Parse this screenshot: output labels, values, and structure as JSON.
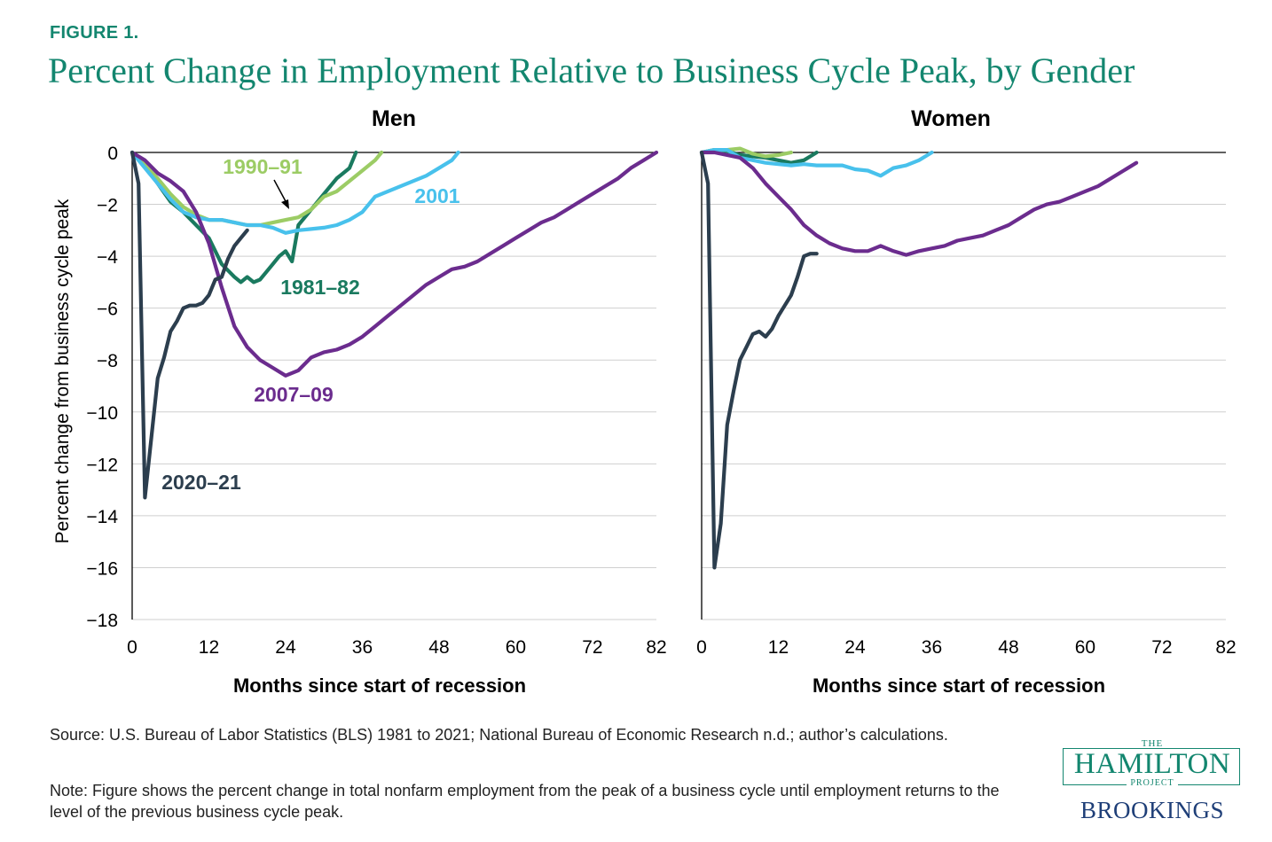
{
  "figure_label": "FIGURE 1.",
  "title": "Percent Change in Employment Relative to Business Cycle Peak, by Gender",
  "source_note": "Source: U.S. Bureau of Labor Statistics (BLS) 1981 to 2021; National Bureau of Economic Research n.d.; author’s calculations.",
  "note": "Note: Figure shows the percent change in total nonfarm employment from the peak of a business cycle until employment returns to the level of the previous business cycle peak.",
  "logo": {
    "the": "THE",
    "name": "HAMILTON",
    "project": "PROJECT",
    "brookings": "BROOKINGS"
  },
  "colors": {
    "title": "#13866f",
    "grid": "#cfcfcf",
    "axis": "#000000",
    "brookings": "#1f3f78"
  },
  "chart_data": [
    {
      "type": "line",
      "title": "Men",
      "xlabel": "Months since start of recession",
      "ylabel": "Percent change from business cycle peak",
      "xlim": [
        0,
        82
      ],
      "ylim": [
        -18,
        0
      ],
      "xticks": [
        "0",
        "12",
        "24",
        "36",
        "48",
        "60",
        "72",
        "82"
      ],
      "yticks": [
        "0",
        "−2",
        "−4",
        "−6",
        "−8",
        "−10",
        "−12",
        "−14",
        "−16",
        "−18"
      ],
      "grid": true,
      "series": [
        {
          "name": "1981–82",
          "color": "#1a7a5f",
          "x": [
            0,
            2,
            4,
            6,
            8,
            10,
            12,
            14,
            16,
            17,
            18,
            19,
            20,
            21,
            22,
            23,
            24,
            25,
            26,
            28,
            30,
            32,
            34,
            35
          ],
          "y": [
            0,
            -0.5,
            -1.2,
            -1.9,
            -2.3,
            -2.8,
            -3.3,
            -4.3,
            -4.8,
            -5.0,
            -4.8,
            -5.0,
            -4.9,
            -4.6,
            -4.3,
            -4.0,
            -3.8,
            -4.2,
            -2.8,
            -2.2,
            -1.6,
            -1.0,
            -0.6,
            0
          ]
        },
        {
          "name": "1990–91",
          "color": "#9ccc65",
          "x": [
            0,
            2,
            4,
            6,
            8,
            10,
            12,
            14,
            16,
            18,
            20,
            22,
            24,
            26,
            28,
            30,
            32,
            34,
            36,
            38,
            39
          ],
          "y": [
            0,
            -0.5,
            -1.0,
            -1.6,
            -2.1,
            -2.4,
            -2.6,
            -2.6,
            -2.7,
            -2.8,
            -2.8,
            -2.7,
            -2.6,
            -2.5,
            -2.2,
            -1.7,
            -1.5,
            -1.1,
            -0.7,
            -0.3,
            0
          ]
        },
        {
          "name": "2001",
          "color": "#48c1ec",
          "x": [
            0,
            2,
            4,
            6,
            8,
            10,
            12,
            14,
            16,
            18,
            20,
            22,
            24,
            26,
            28,
            30,
            32,
            34,
            36,
            38,
            40,
            42,
            44,
            46,
            48,
            50,
            51
          ],
          "y": [
            0,
            -0.6,
            -1.2,
            -1.8,
            -2.3,
            -2.5,
            -2.6,
            -2.6,
            -2.7,
            -2.8,
            -2.8,
            -2.9,
            -3.1,
            -3.0,
            -2.95,
            -2.9,
            -2.8,
            -2.6,
            -2.3,
            -1.7,
            -1.5,
            -1.3,
            -1.1,
            -0.9,
            -0.6,
            -0.3,
            0
          ]
        },
        {
          "name": "2007–09",
          "color": "#6b2c8e",
          "x": [
            0,
            2,
            4,
            6,
            8,
            10,
            12,
            14,
            16,
            18,
            20,
            22,
            24,
            26,
            28,
            30,
            32,
            34,
            36,
            38,
            40,
            42,
            44,
            46,
            48,
            50,
            52,
            54,
            56,
            58,
            60,
            62,
            64,
            66,
            68,
            70,
            72,
            74,
            76,
            78,
            80,
            82
          ],
          "y": [
            0,
            -0.3,
            -0.8,
            -1.1,
            -1.5,
            -2.3,
            -3.5,
            -5.2,
            -6.7,
            -7.5,
            -8.0,
            -8.3,
            -8.6,
            -8.4,
            -7.9,
            -7.7,
            -7.6,
            -7.4,
            -7.1,
            -6.7,
            -6.3,
            -5.9,
            -5.5,
            -5.1,
            -4.8,
            -4.5,
            -4.4,
            -4.2,
            -3.9,
            -3.6,
            -3.3,
            -3.0,
            -2.7,
            -2.5,
            -2.2,
            -1.9,
            -1.6,
            -1.3,
            -1.0,
            -0.6,
            -0.3,
            0
          ]
        },
        {
          "name": "2020–21",
          "color": "#2c3e4e",
          "x": [
            0,
            1,
            2,
            3,
            4,
            5,
            6,
            7,
            8,
            9,
            10,
            11,
            12,
            13,
            14,
            15,
            16,
            17,
            18
          ],
          "y": [
            0,
            -1.2,
            -13.3,
            -11.0,
            -8.7,
            -7.9,
            -6.9,
            -6.5,
            -6.0,
            -5.9,
            -5.9,
            -5.8,
            -5.5,
            -4.9,
            -4.8,
            -4.1,
            -3.6,
            -3.3,
            -3.0
          ]
        }
      ],
      "annotations": [
        {
          "text": "1990–91",
          "series": "1990–91",
          "arrow": true
        },
        {
          "text": "2001",
          "series": "2001"
        },
        {
          "text": "1981–82",
          "series": "1981–82"
        },
        {
          "text": "2007–09",
          "series": "2007–09"
        },
        {
          "text": "2020–21",
          "series": "2020–21"
        }
      ]
    },
    {
      "type": "line",
      "title": "Women",
      "xlabel": "Months since start of recession",
      "xlim": [
        0,
        82
      ],
      "ylim": [
        -18,
        0
      ],
      "xticks": [
        "0",
        "12",
        "24",
        "36",
        "48",
        "60",
        "72",
        "82"
      ],
      "grid": true,
      "series": [
        {
          "name": "1981–82",
          "color": "#1a7a5f",
          "x": [
            0,
            2,
            4,
            6,
            8,
            10,
            12,
            14,
            16,
            18
          ],
          "y": [
            0,
            0.1,
            0.05,
            -0.1,
            -0.15,
            -0.2,
            -0.3,
            -0.4,
            -0.3,
            0
          ]
        },
        {
          "name": "1990–91",
          "color": "#9ccc65",
          "x": [
            0,
            2,
            4,
            6,
            8,
            10,
            12,
            14
          ],
          "y": [
            0,
            0.1,
            0.1,
            0.15,
            -0.05,
            -0.15,
            -0.1,
            0
          ]
        },
        {
          "name": "2001",
          "color": "#48c1ec",
          "x": [
            0,
            2,
            4,
            6,
            8,
            10,
            12,
            14,
            16,
            18,
            20,
            22,
            24,
            26,
            28,
            30,
            32,
            34,
            36
          ],
          "y": [
            0,
            0.1,
            0.1,
            -0.2,
            -0.3,
            -0.4,
            -0.45,
            -0.5,
            -0.45,
            -0.5,
            -0.5,
            -0.5,
            -0.65,
            -0.7,
            -0.9,
            -0.6,
            -0.5,
            -0.3,
            0
          ]
        },
        {
          "name": "2007–09",
          "color": "#6b2c8e",
          "x": [
            0,
            2,
            4,
            6,
            8,
            10,
            12,
            14,
            16,
            18,
            20,
            22,
            24,
            26,
            28,
            30,
            32,
            34,
            36,
            38,
            40,
            42,
            44,
            46,
            48,
            50,
            52,
            54,
            56,
            58,
            60,
            62,
            64,
            66,
            68
          ],
          "y": [
            0,
            0,
            -0.1,
            -0.2,
            -0.6,
            -1.2,
            -1.7,
            -2.2,
            -2.8,
            -3.2,
            -3.5,
            -3.7,
            -3.8,
            -3.8,
            -3.6,
            -3.8,
            -3.95,
            -3.8,
            -3.7,
            -3.6,
            -3.4,
            -3.3,
            -3.2,
            -3.0,
            -2.8,
            -2.5,
            -2.2,
            -2.0,
            -1.9,
            -1.7,
            -1.5,
            -1.3,
            -1.0,
            -0.7,
            -0.4
          ]
        },
        {
          "name": "2020–21",
          "color": "#2c3e4e",
          "x": [
            0,
            1,
            2,
            3,
            4,
            5,
            6,
            7,
            8,
            9,
            10,
            11,
            12,
            13,
            14,
            15,
            16,
            17,
            18
          ],
          "y": [
            0,
            -1.2,
            -16.0,
            -14.3,
            -10.5,
            -9.2,
            -8.0,
            -7.5,
            -7.0,
            -6.9,
            -7.1,
            -6.8,
            -6.3,
            -5.9,
            -5.5,
            -4.8,
            -4.0,
            -3.9,
            -3.9
          ]
        }
      ]
    }
  ]
}
